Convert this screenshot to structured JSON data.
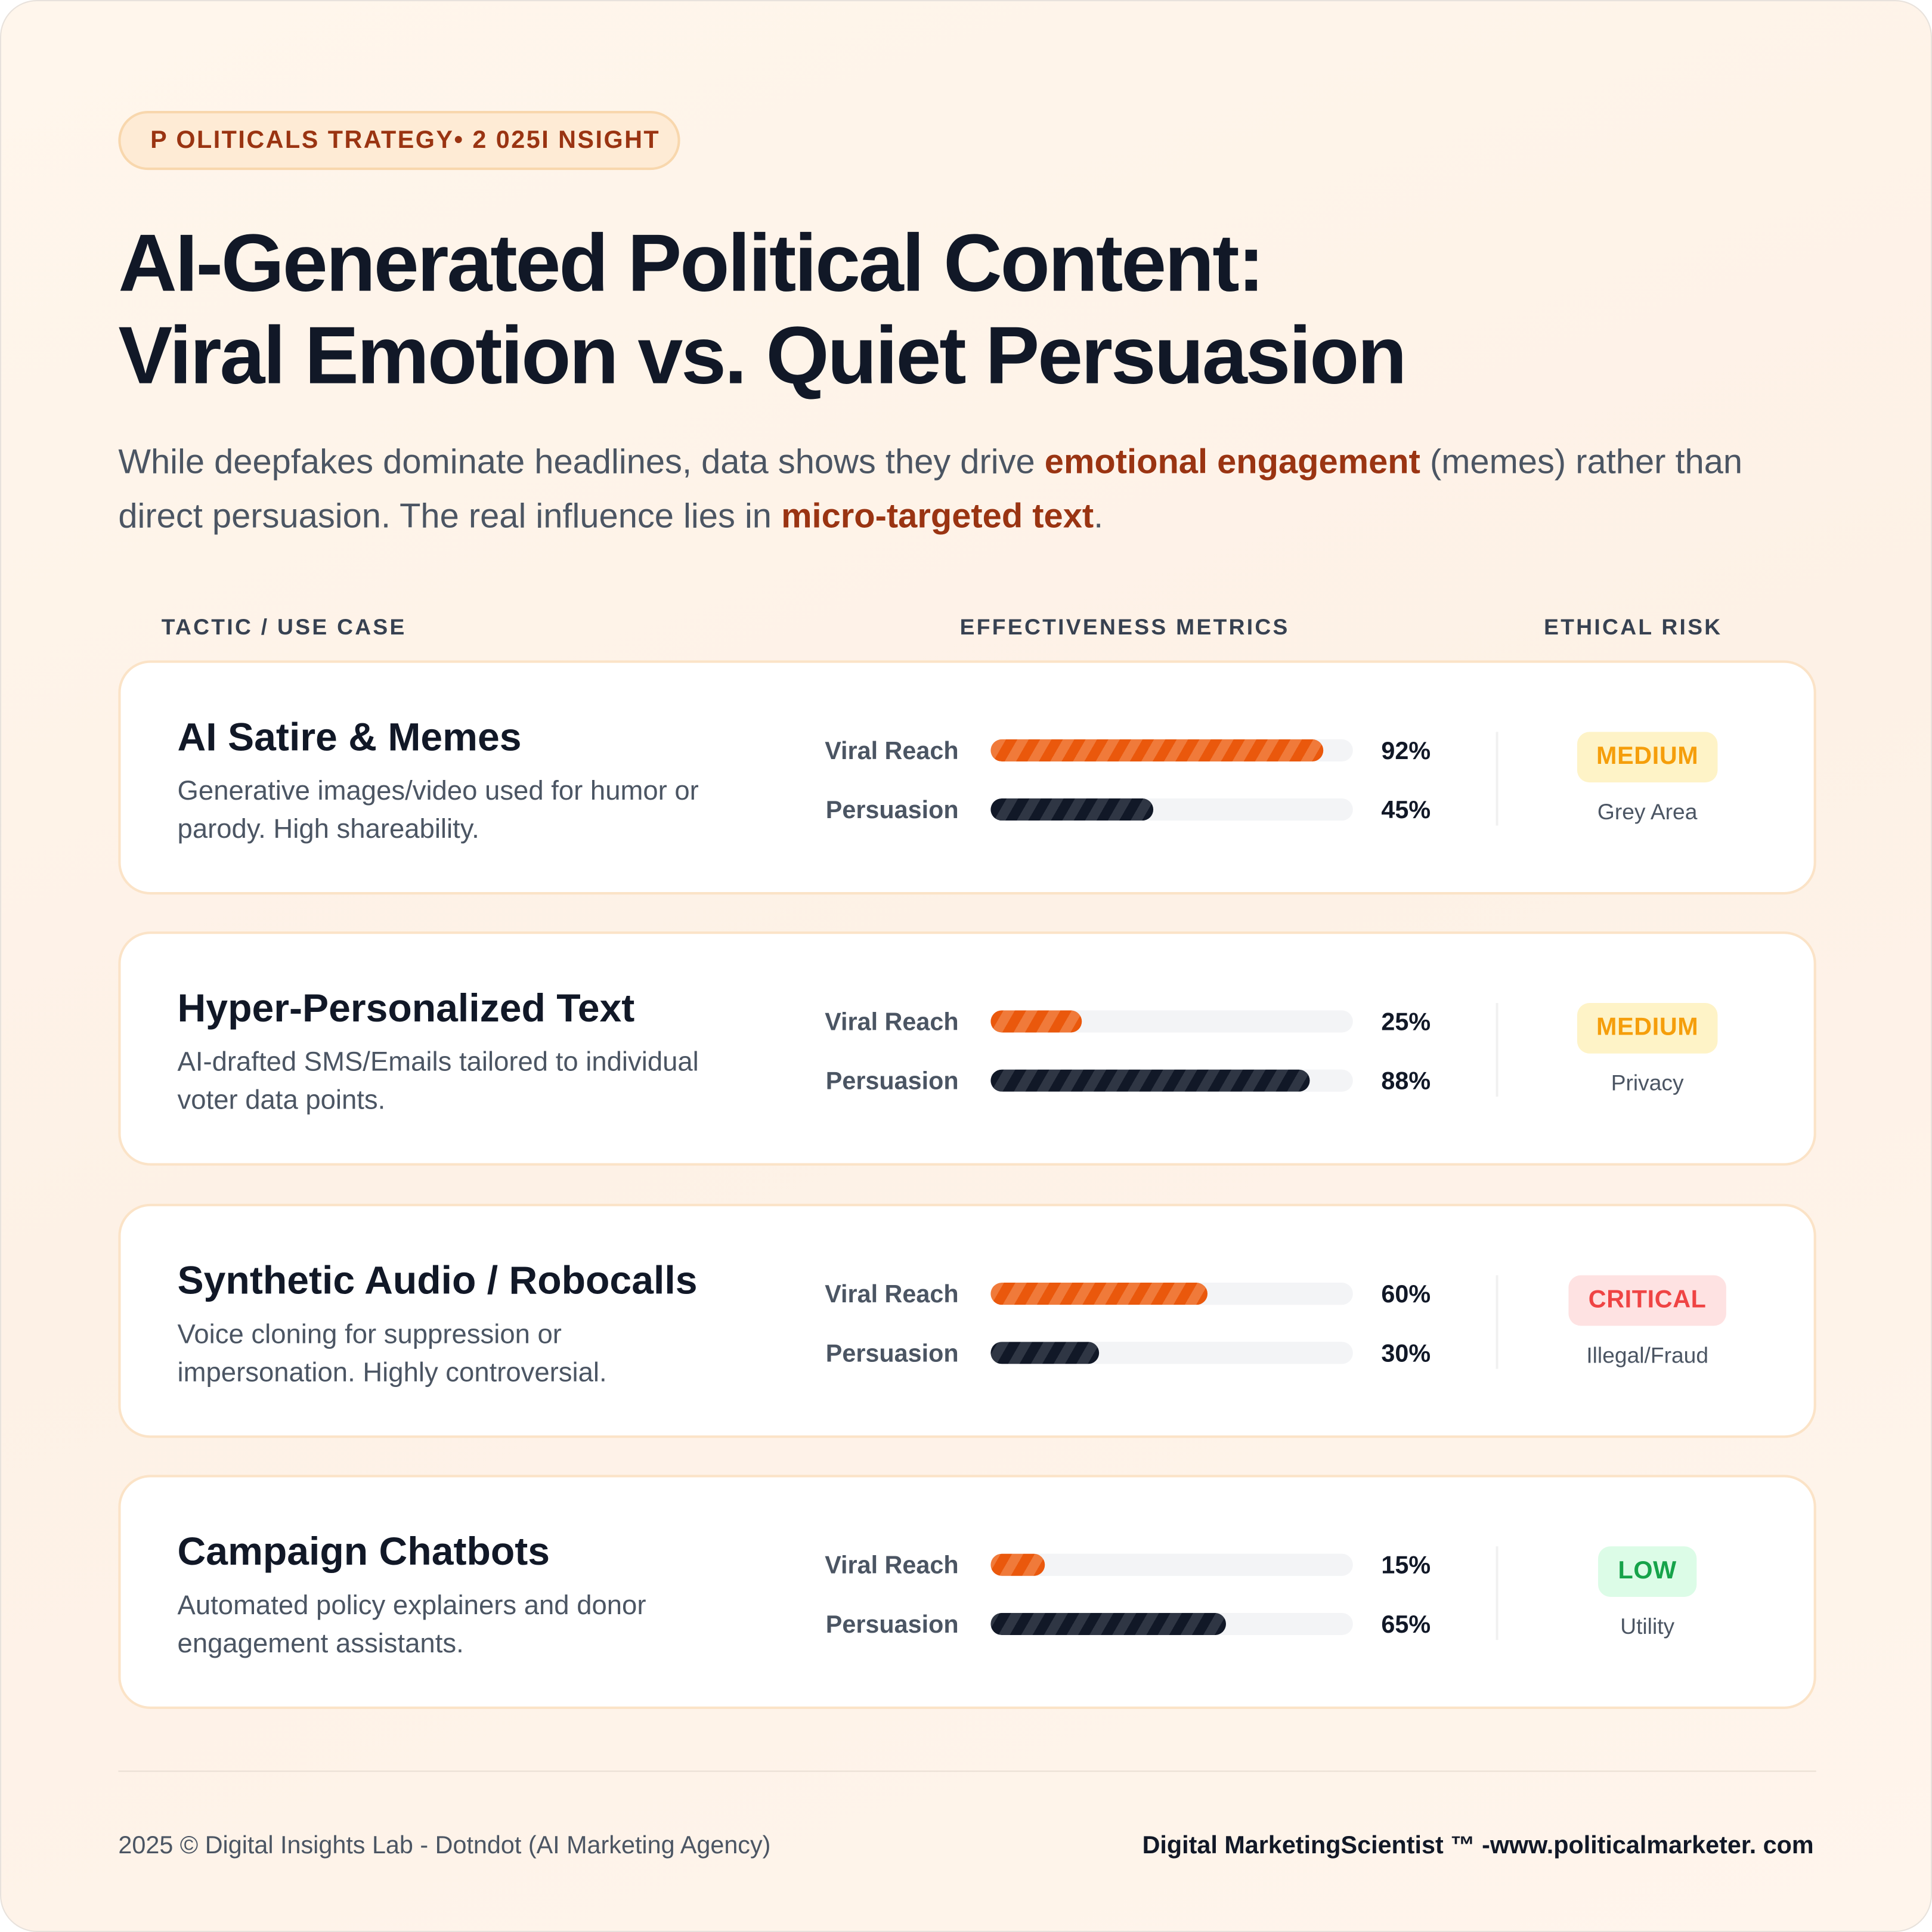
{
  "kicker": "P  OLITICALS TRATEGY• 2 025I NSIGHT",
  "title": {
    "line1": "AI-Generated Political Content:",
    "line2": "Viral Emotion vs. Quiet Persuasion"
  },
  "subtitle": {
    "part1": "While deepfakes dominate headlines, data shows they drive ",
    "hl1": "emotional engagement",
    "part2": " (memes) rather than direct persuasion. The real influence lies in ",
    "hl2": "micro-targeted text",
    "part3": "."
  },
  "columns": {
    "tactic": "TACTIC / USE CASE",
    "metrics": "EFFECTIVENESS METRICS",
    "risk": "ETHICAL RISK"
  },
  "metric_labels": {
    "viral": "Viral Reach",
    "persuasion": "Persuasion"
  },
  "rows": [
    {
      "title": "AI Satire & Memes",
      "desc": "Generative images/video used for humor or parody. High shareability.",
      "viral": 92,
      "viral_label": "92%",
      "persuasion": 45,
      "persuasion_label": "45%",
      "risk": "MEDIUM",
      "risk_note": "Grey Area",
      "risk_bg": "#fef3c7",
      "risk_fg": "#f59e0b"
    },
    {
      "title": "Hyper-Personalized Text",
      "desc": "AI-drafted SMS/Emails tailored to individual voter data points.",
      "viral": 25,
      "viral_label": "25%",
      "persuasion": 88,
      "persuasion_label": "88%",
      "risk": "MEDIUM",
      "risk_note": "Privacy",
      "risk_bg": "#fef3c7",
      "risk_fg": "#f59e0b"
    },
    {
      "title": "Synthetic Audio / Robocalls",
      "desc": "Voice cloning for suppression or impersonation. Highly controversial.",
      "viral": 60,
      "viral_label": "60%",
      "persuasion": 30,
      "persuasion_label": "30%",
      "risk": "CRITICAL",
      "risk_note": "Illegal/Fraud",
      "risk_bg": "#fee2e2",
      "risk_fg": "#ef4444"
    },
    {
      "title": "Campaign Chatbots",
      "desc": "Automated policy explainers and donor engagement assistants.",
      "viral": 15,
      "viral_label": "15%",
      "persuasion": 65,
      "persuasion_label": "65%",
      "risk": "LOW",
      "risk_note": "Utility",
      "risk_bg": "#dcfce7",
      "risk_fg": "#16a34a"
    }
  ],
  "footer": {
    "left": "2025 © Digital Insights Lab - Dotndot (AI Marketing Agency)",
    "right": "Digital MarketingScientist ™ -www.politicalmarketer.  com"
  }
}
